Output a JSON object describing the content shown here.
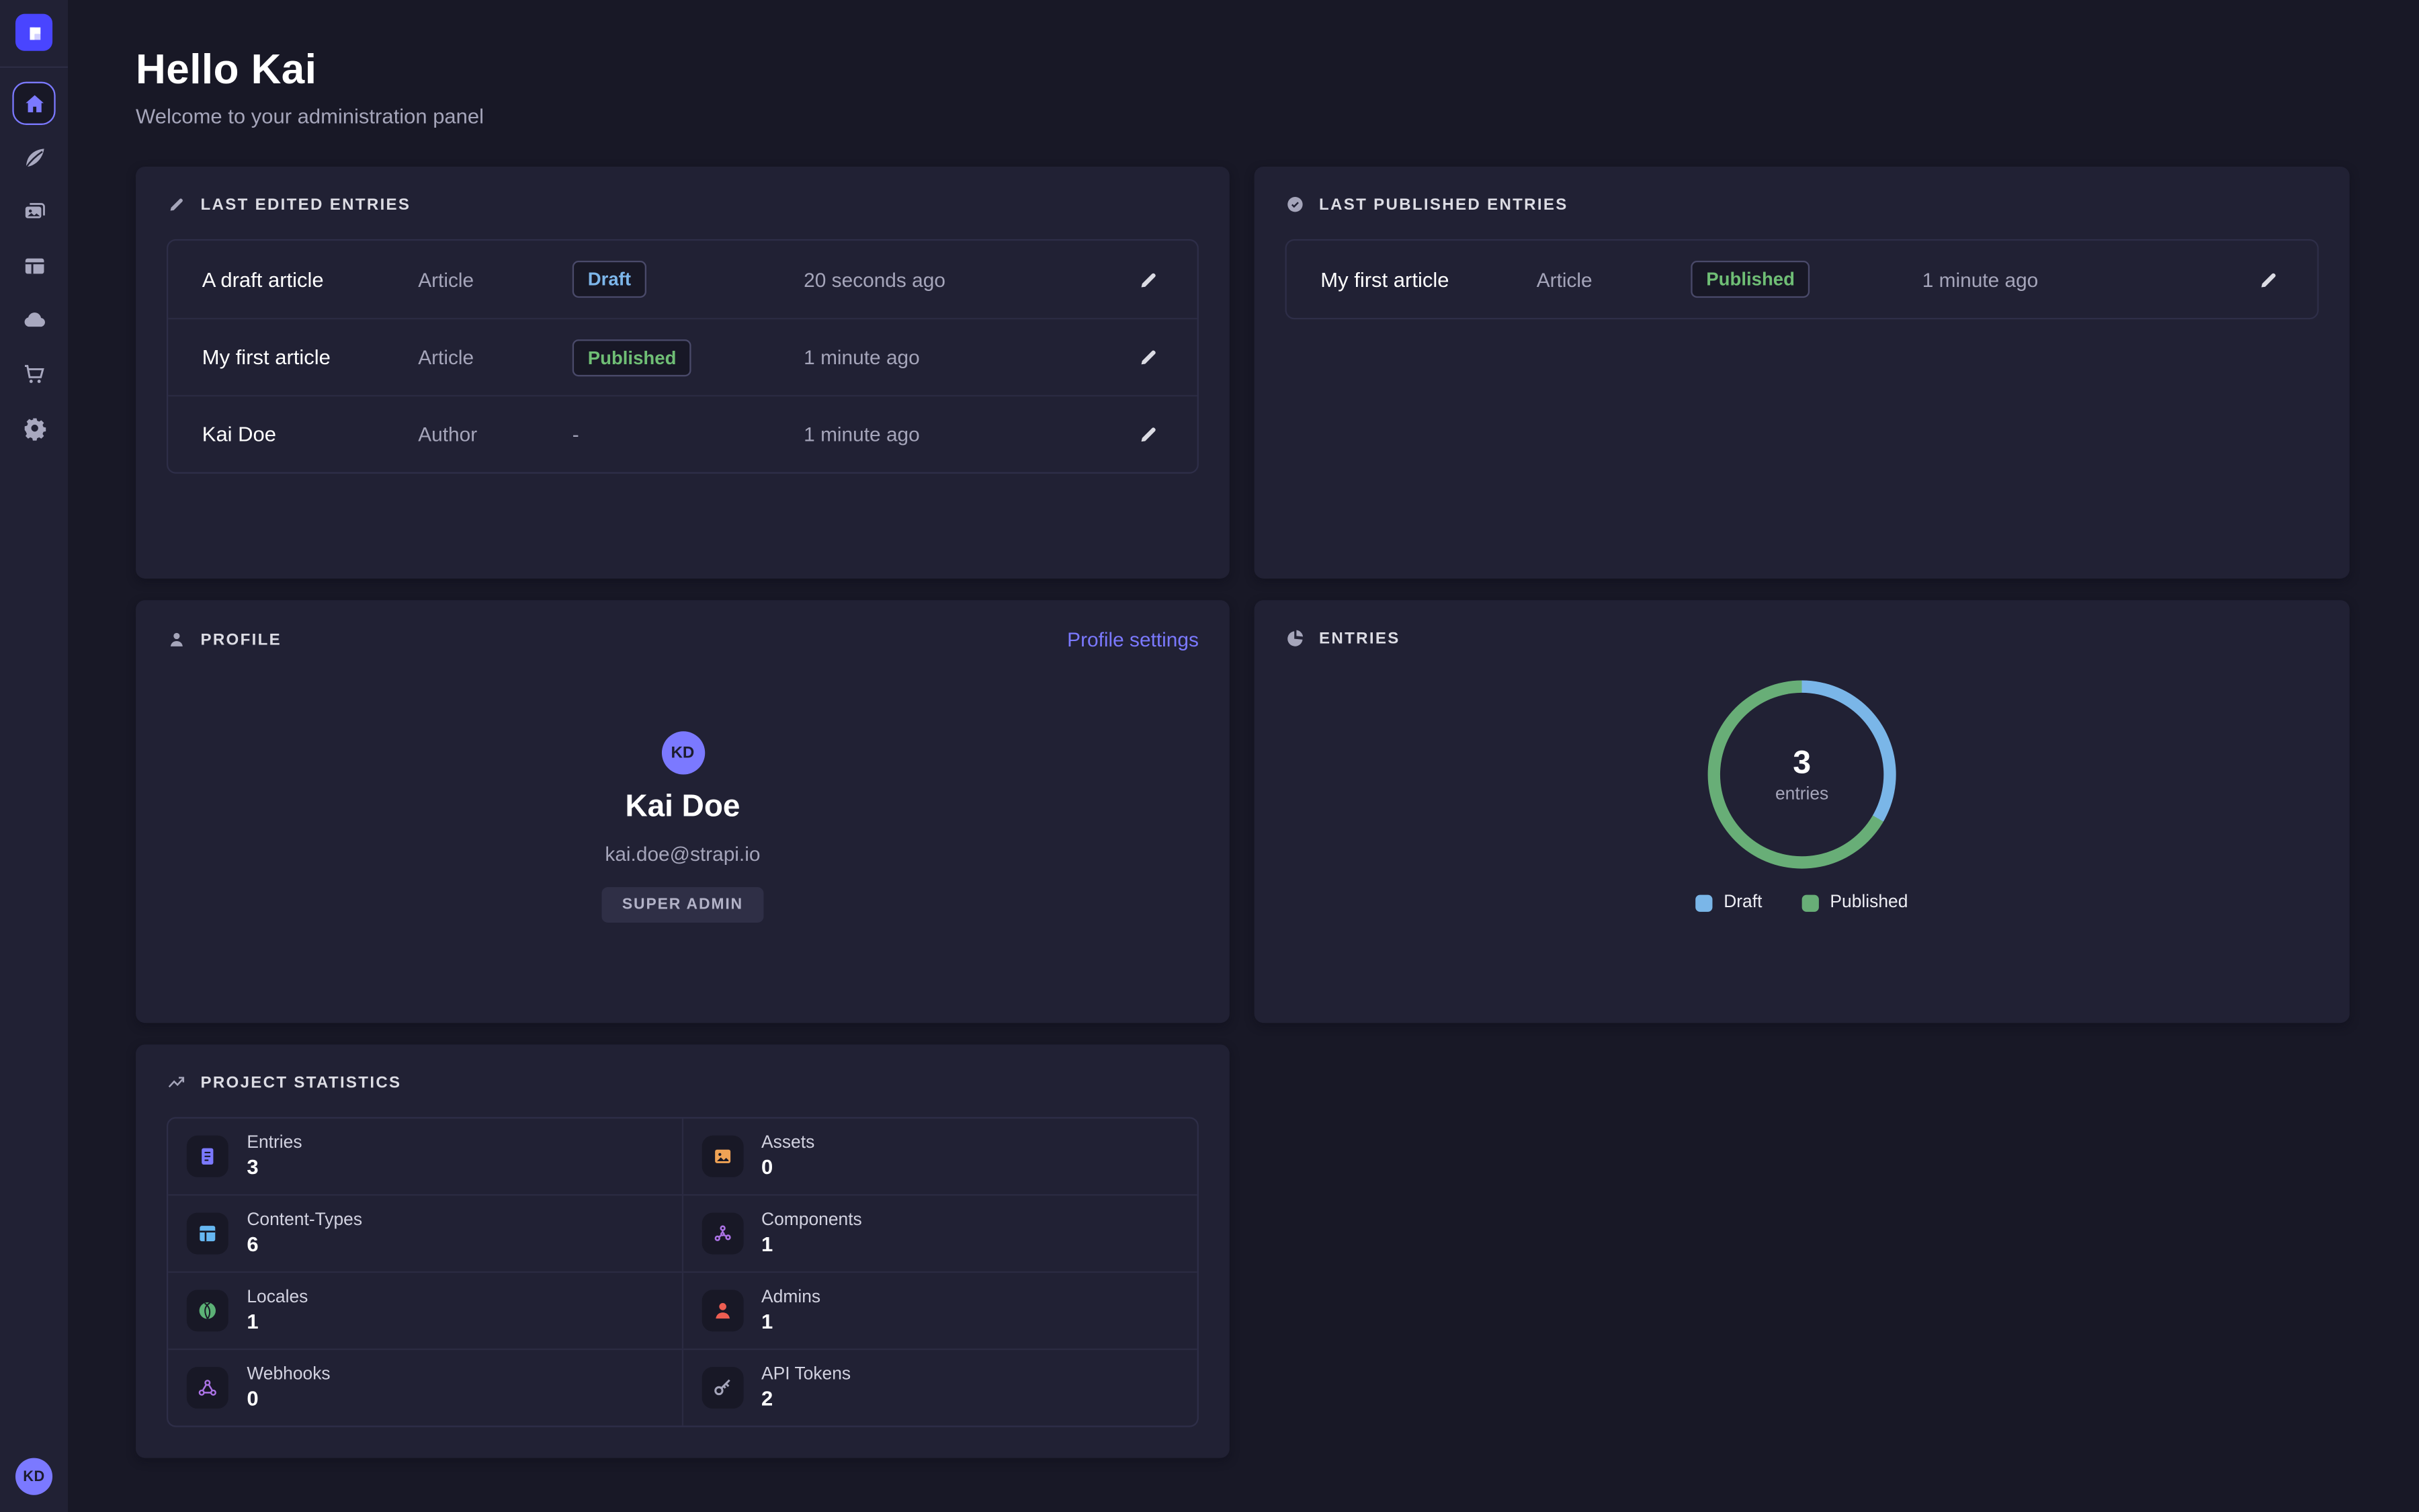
{
  "header": {
    "title": "Hello Kai",
    "subtitle": "Welcome to your administration panel"
  },
  "sidebar": {
    "logo_icon": "strapi-logo",
    "logo_color": "#4945FF",
    "user_initials": "KD",
    "items": [
      {
        "name": "home",
        "icon": "home-icon",
        "active": true
      },
      {
        "name": "content-manager",
        "icon": "feather-icon",
        "active": false
      },
      {
        "name": "media-library",
        "icon": "media-icon",
        "active": false
      },
      {
        "name": "content-type-builder",
        "icon": "layout-icon",
        "active": false
      },
      {
        "name": "deploy",
        "icon": "cloud-icon",
        "active": false
      },
      {
        "name": "marketplace",
        "icon": "cart-icon",
        "active": false
      },
      {
        "name": "settings",
        "icon": "gear-icon",
        "active": false
      }
    ]
  },
  "panels": {
    "last_edited": {
      "title": "LAST EDITED ENTRIES",
      "icon": "pencil-icon",
      "rows": [
        {
          "name": "A draft article",
          "kind": "Article",
          "status": "Draft",
          "status_variant": "draft",
          "time": "20 seconds ago"
        },
        {
          "name": "My first article",
          "kind": "Article",
          "status": "Published",
          "status_variant": "published",
          "time": "1 minute ago"
        },
        {
          "name": "Kai Doe",
          "kind": "Author",
          "status": "-",
          "status_variant": "none",
          "time": "1 minute ago"
        }
      ]
    },
    "last_published": {
      "title": "LAST PUBLISHED ENTRIES",
      "icon": "check-circle-icon",
      "rows": [
        {
          "name": "My first article",
          "kind": "Article",
          "status": "Published",
          "status_variant": "published",
          "time": "1 minute ago"
        }
      ]
    },
    "profile": {
      "title": "PROFILE",
      "icon": "person-icon",
      "link_label": "Profile settings",
      "initials": "KD",
      "name": "Kai Doe",
      "email": "kai.doe@strapi.io",
      "role_badge": "SUPER ADMIN"
    },
    "entries": {
      "title": "ENTRIES",
      "icon": "pie-icon"
    },
    "stats": {
      "title": "PROJECT STATISTICS",
      "icon": "trend-icon",
      "items": [
        {
          "label": "Entries",
          "value": "3",
          "icon": "doc-icon",
          "color": "#7B79FF"
        },
        {
          "label": "Assets",
          "value": "0",
          "icon": "image-icon",
          "color": "#F0A355"
        },
        {
          "label": "Content-Types",
          "value": "6",
          "icon": "grid-icon",
          "color": "#66B7F1"
        },
        {
          "label": "Components",
          "value": "1",
          "icon": "nodes-icon",
          "color": "#AC73E6"
        },
        {
          "label": "Locales",
          "value": "1",
          "icon": "globe-icon",
          "color": "#5CB176"
        },
        {
          "label": "Admins",
          "value": "1",
          "icon": "person-icon",
          "color": "#EE5E52"
        },
        {
          "label": "Webhooks",
          "value": "0",
          "icon": "webhook-icon",
          "color": "#AC73E6"
        },
        {
          "label": "API Tokens",
          "value": "2",
          "icon": "key-icon",
          "color": "#A5A5BA"
        }
      ]
    }
  },
  "chart_data": {
    "type": "pie",
    "title": "ENTRIES",
    "labels": [
      "Draft",
      "Published"
    ],
    "values": [
      1,
      2
    ],
    "colors": [
      "#7AB6E8",
      "#68AE77"
    ],
    "center_value": "3",
    "center_label": "entries",
    "legend_position": "bottom"
  },
  "colors": {
    "page_bg": "#181826",
    "surface": "#212134",
    "accent": "#7B79FF",
    "logo": "#4945FF",
    "draft_text": "#7DB6EA",
    "published_text": "#6FBE75"
  }
}
